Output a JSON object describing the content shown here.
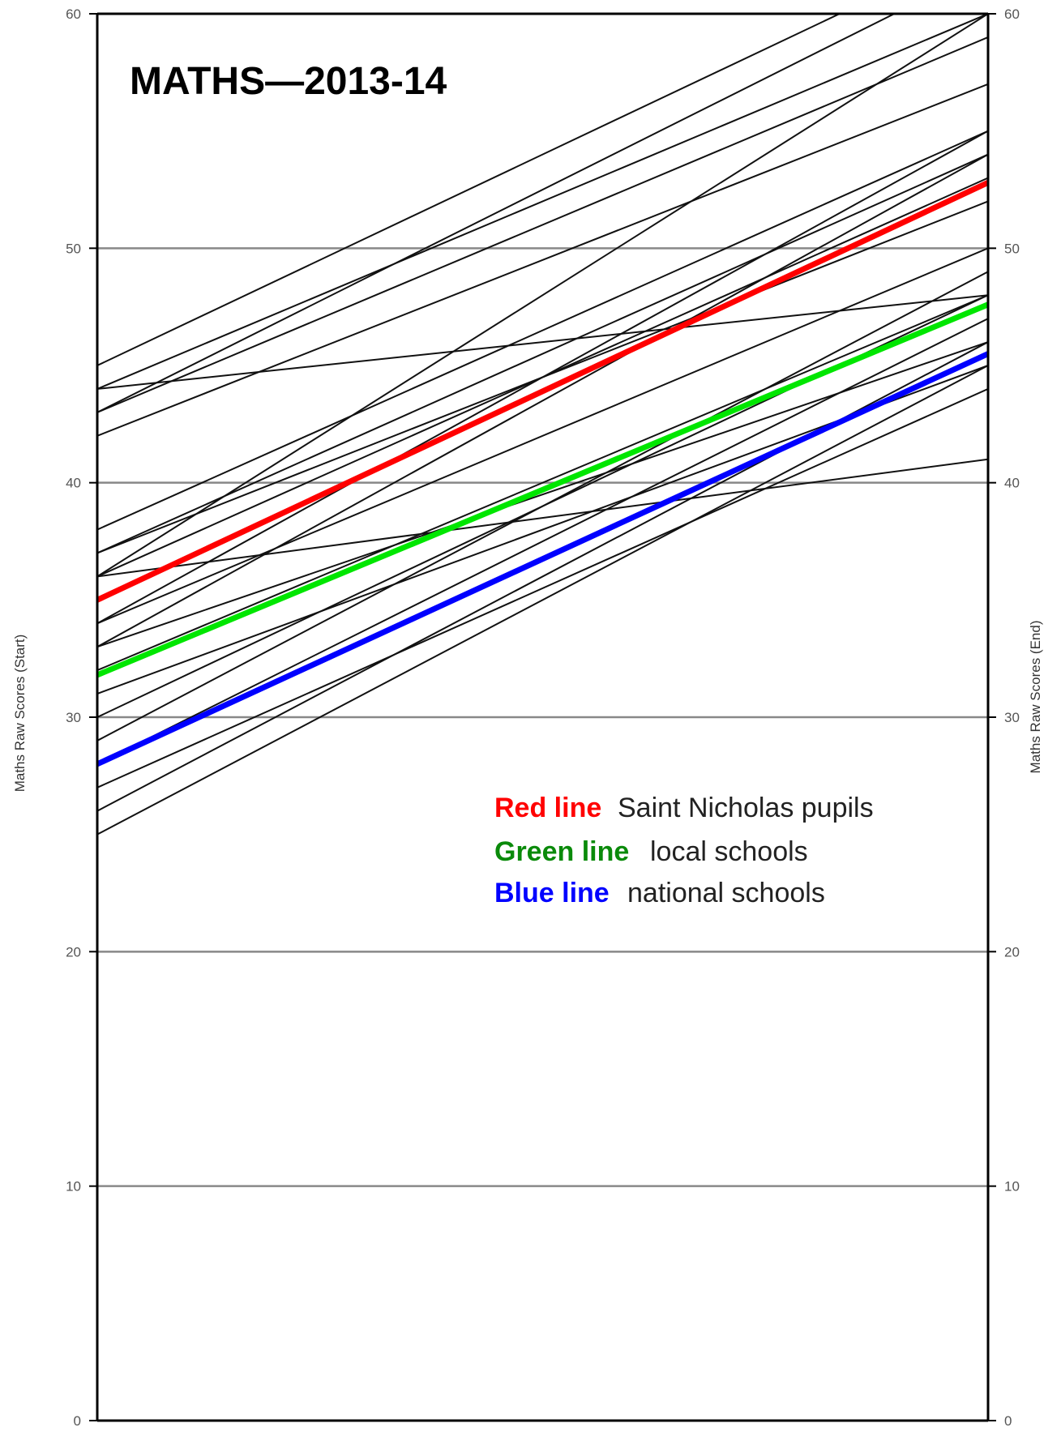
{
  "chart_data": {
    "type": "line",
    "title": "MATHS—2013-14",
    "ylabel_left": "Maths Raw Scores (Start)",
    "ylabel_right": "Maths Raw Scores (End)",
    "ylim": [
      0,
      60
    ],
    "y_ticks": [
      0,
      10,
      20,
      30,
      40,
      50,
      60
    ],
    "grid": true,
    "pupil_lines": [
      {
        "start": 45,
        "end": 63
      },
      {
        "start": 44,
        "end": 60
      },
      {
        "start": 43,
        "end": 59
      },
      {
        "start": 43,
        "end": 62
      },
      {
        "start": 44,
        "end": 48
      },
      {
        "start": 42,
        "end": 57
      },
      {
        "start": 38,
        "end": 55
      },
      {
        "start": 37,
        "end": 54
      },
      {
        "start": 36,
        "end": 60
      },
      {
        "start": 37,
        "end": 52
      },
      {
        "start": 36,
        "end": 53
      },
      {
        "start": 34,
        "end": 55
      },
      {
        "start": 34,
        "end": 50
      },
      {
        "start": 33,
        "end": 54
      },
      {
        "start": 33,
        "end": 46
      },
      {
        "start": 31,
        "end": 45
      },
      {
        "start": 32,
        "end": 48
      },
      {
        "start": 29,
        "end": 49
      },
      {
        "start": 28,
        "end": 47
      },
      {
        "start": 27,
        "end": 44
      },
      {
        "start": 26,
        "end": 46
      },
      {
        "start": 25,
        "end": 45
      },
      {
        "start": 36,
        "end": 41
      },
      {
        "start": 30,
        "end": 48
      }
    ],
    "series": [
      {
        "name": "Saint Nicholas pupils",
        "color": "#ff0000",
        "start": 35,
        "end": 52.8
      },
      {
        "name": "local schools",
        "color": "#00e600",
        "start": 31.8,
        "end": 47.6
      },
      {
        "name": "national schools",
        "color": "#0000ff",
        "start": 28,
        "end": 45.5
      }
    ],
    "legend": [
      {
        "key": "Red line",
        "desc": "Saint Nicholas pupils",
        "key_color": "#ff0000"
      },
      {
        "key": "Green line",
        "desc": "local schools",
        "key_color": "#0a8a0a"
      },
      {
        "key": "Blue line",
        "desc": "national schools",
        "key_color": "#0000ff"
      }
    ]
  }
}
